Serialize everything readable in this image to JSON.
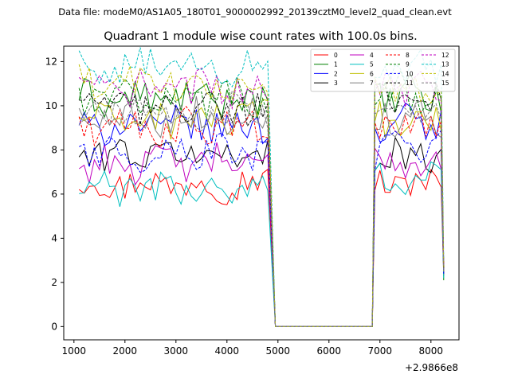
{
  "chart_data": {
    "type": "line",
    "suptitle": "Data file: modeM0/AS1A05_180T01_9000002992_20139cztM0_level2_quad_clean.evt",
    "title": "Quadrant 1 module wise count rates with 100.0s bins.",
    "xlabel": "",
    "ylabel": "",
    "x_offset_label": "+2.9866e8",
    "xlim": [
      800,
      8550
    ],
    "ylim": [
      -0.6,
      12.7
    ],
    "xticks": [
      1000,
      2000,
      3000,
      4000,
      5000,
      6000,
      7000,
      8000
    ],
    "xtick_labels": [
      "1000",
      "2000",
      "3000",
      "4000",
      "5000",
      "6000",
      "7000",
      "8000"
    ],
    "yticks": [
      0,
      2,
      4,
      6,
      8,
      10,
      12
    ],
    "ytick_labels": [
      "0",
      "2",
      "4",
      "6",
      "8",
      "10",
      "12"
    ],
    "legend_position": "top-right",
    "legend_columns": 4,
    "segments": [
      {
        "x_start": 1100,
        "x_end": 4800,
        "step": 100
      },
      {
        "x_start": 6900,
        "x_end": 8200,
        "step": 100
      }
    ],
    "gap": {
      "zero_from": 4950,
      "zero_to": 6850
    },
    "end_x": 8250,
    "series": [
      {
        "name": "0",
        "color": "#ff0000",
        "style": "solid",
        "mean1": 6.5,
        "mean2": 6.5,
        "end": 2.3
      },
      {
        "name": "1",
        "color": "#008000",
        "style": "solid",
        "mean1": 10.3,
        "mean2": 10.4,
        "end": 2.1
      },
      {
        "name": "2",
        "color": "#0000ff",
        "style": "solid",
        "mean1": 9.1,
        "mean2": 9.2,
        "end": 2.5
      },
      {
        "name": "3",
        "color": "#000000",
        "style": "solid",
        "mean1": 7.8,
        "mean2": 7.8,
        "end": 2.4
      },
      {
        "name": "4",
        "color": "#bf00bf",
        "style": "solid",
        "mean1": 7.4,
        "mean2": 7.5,
        "end": 2.4
      },
      {
        "name": "5",
        "color": "#00bfbf",
        "style": "solid",
        "mean1": 6.2,
        "mean2": 6.7,
        "end": 2.2
      },
      {
        "name": "6",
        "color": "#bfbf00",
        "style": "solid",
        "mean1": 9.4,
        "mean2": 9.3,
        "end": 2.5
      },
      {
        "name": "7",
        "color": "#808080",
        "style": "solid",
        "mean1": 9.5,
        "mean2": 9.6,
        "end": 2.6
      },
      {
        "name": "8",
        "color": "#ff0000",
        "style": "dashed",
        "mean1": 9.0,
        "mean2": 9.1,
        "end": 2.6
      },
      {
        "name": "9",
        "color": "#008000",
        "style": "dashed",
        "mean1": 10.4,
        "mean2": 10.5,
        "end": 2.7
      },
      {
        "name": "10",
        "color": "#0000ff",
        "style": "dashed",
        "mean1": 7.9,
        "mean2": 7.9,
        "end": 2.4
      },
      {
        "name": "11",
        "color": "#000000",
        "style": "dashed",
        "mean1": 10.0,
        "mean2": 10.1,
        "end": 2.6
      },
      {
        "name": "12",
        "color": "#bf00bf",
        "style": "dashed",
        "mean1": 10.8,
        "mean2": 10.9,
        "end": 2.8
      },
      {
        "name": "13",
        "color": "#00bfbf",
        "style": "dashed",
        "mean1": 11.7,
        "mean2": 11.6,
        "end": 3.0
      },
      {
        "name": "14",
        "color": "#bfbf00",
        "style": "dashed",
        "mean1": 10.9,
        "mean2": 10.8,
        "end": 2.7
      },
      {
        "name": "15",
        "color": "#808080",
        "style": "dashed",
        "mean1": 9.7,
        "mean2": 9.8,
        "end": 2.5
      }
    ]
  }
}
